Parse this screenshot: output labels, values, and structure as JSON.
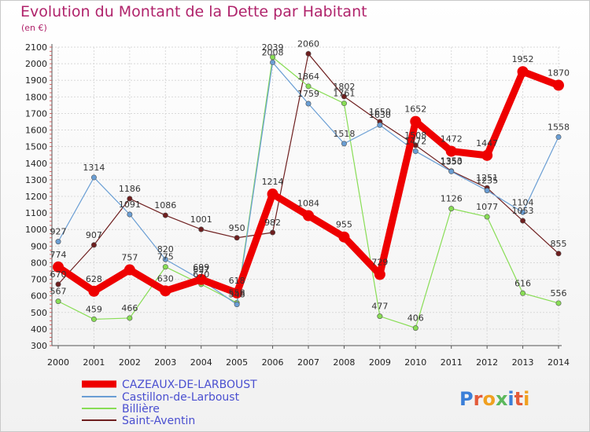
{
  "chart_data": {
    "type": "line",
    "title": "Evolution du Montant de la Dette par Habitant",
    "subtitle": "(en €)",
    "x": [
      "2000",
      "2001",
      "2002",
      "2003",
      "2004",
      "2005",
      "2006",
      "2007",
      "2008",
      "2009",
      "2010",
      "2011",
      "2012",
      "2013",
      "2014"
    ],
    "yticks": [
      300,
      400,
      500,
      600,
      700,
      800,
      900,
      1000,
      1100,
      1200,
      1300,
      1400,
      1500,
      1600,
      1700,
      1800,
      1900,
      2000,
      2100
    ],
    "ylim": [
      300,
      2100
    ],
    "grid": true,
    "legend": "bottom-left",
    "series": [
      {
        "name": "CAZEAUX-DE-LARBOUST",
        "color": "#ee0000",
        "values": [
          774,
          628,
          757,
          630,
          699,
          618,
          1214,
          1084,
          955,
          729,
          1652,
          1472,
          1447,
          1952,
          1870
        ]
      },
      {
        "name": "Castillon-de-Larboust",
        "color": "#6a9ed4",
        "values": [
          927,
          1314,
          1091,
          820,
          697,
          548,
          2008,
          1759,
          1518,
          1630,
          1472,
          1350,
          1235,
          1104,
          1558
        ]
      },
      {
        "name": "Billière",
        "color": "#88dd55",
        "values": [
          567,
          459,
          466,
          775,
          670,
          558,
          2039,
          1864,
          1761,
          477,
          406,
          1126,
          1077,
          616,
          556
        ]
      },
      {
        "name": "Saint-Aventin",
        "color": "#6e1f1f",
        "values": [
          670,
          907,
          1186,
          1086,
          1001,
          950,
          982,
          2060,
          1802,
          1650,
          1508,
          1353,
          1251,
          1053,
          855
        ]
      }
    ]
  },
  "labels": {
    "s0": [
      "774",
      "628",
      "757",
      "630",
      "699",
      "618",
      "1214",
      "1084",
      "955",
      "729",
      "1652",
      "1472",
      "1447",
      "1952",
      "1870"
    ],
    "s1": [
      "927",
      "1314",
      "1091",
      "820",
      "697",
      "548",
      "2008",
      "1759",
      "1518",
      "1630",
      "1472",
      "1350",
      "1235",
      "1104",
      "1558"
    ],
    "s2": [
      "567",
      "459",
      "466",
      "775",
      "670",
      "558",
      "2039",
      "1864",
      "1761",
      "477",
      "406",
      "1126",
      "1077",
      "616",
      "556"
    ],
    "s3": [
      "670",
      "907",
      "1186",
      "1086",
      "1001",
      "950",
      "982",
      "2060",
      "1802",
      "1650",
      "1508",
      "1353",
      "1251",
      "1053",
      "855"
    ]
  },
  "brand": {
    "text": "Proxiti"
  }
}
